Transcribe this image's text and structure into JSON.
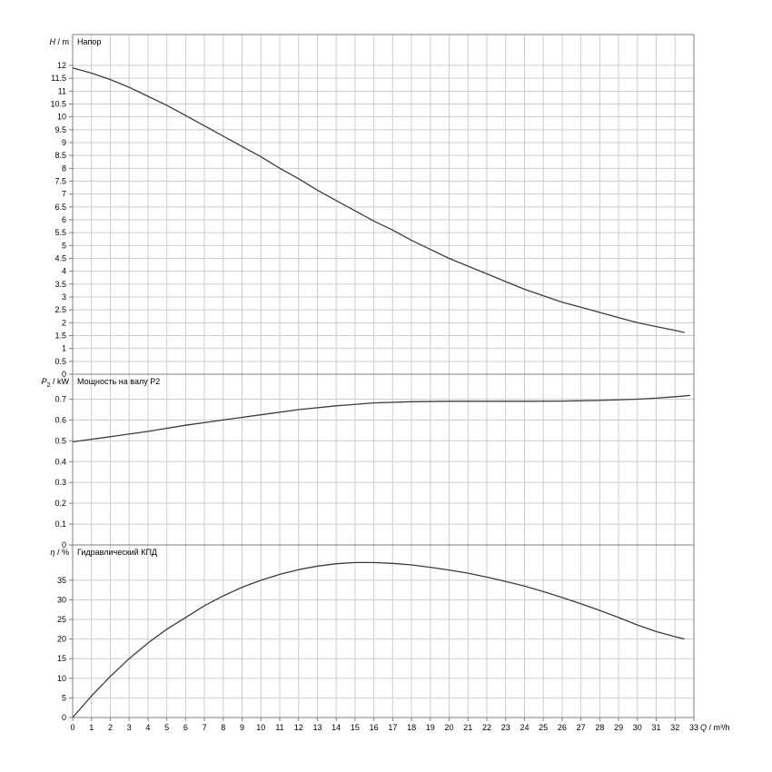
{
  "colors": {
    "background": "#ffffff",
    "grid": "#cdcdcd",
    "axis": "#7f7f7f",
    "curve": "#3d3d3d",
    "text": "#000000"
  },
  "chart_data": {
    "type": "line",
    "x_axis": {
      "min": 0,
      "max": 33,
      "tick_step": 1,
      "label": {
        "var": "Q",
        "sep": " / ",
        "unit": "m³/h"
      }
    },
    "panels": [
      {
        "name": "head",
        "title": "Напор",
        "ylabel": {
          "var": "H",
          "sep": " / ",
          "unit": "m"
        },
        "yrange": [
          0,
          13.2
        ],
        "yticks": {
          "min": 0,
          "max": 12,
          "step": 0.5
        },
        "points": [
          [
            0,
            11.9
          ],
          [
            1,
            11.7
          ],
          [
            2,
            11.45
          ],
          [
            3,
            11.15
          ],
          [
            4,
            10.8
          ],
          [
            5,
            10.45
          ],
          [
            6,
            10.05
          ],
          [
            7,
            9.65
          ],
          [
            8,
            9.25
          ],
          [
            9,
            8.85
          ],
          [
            10,
            8.45
          ],
          [
            11,
            8.0
          ],
          [
            12,
            7.6
          ],
          [
            13,
            7.15
          ],
          [
            14,
            6.75
          ],
          [
            15,
            6.35
          ],
          [
            16,
            5.95
          ],
          [
            17,
            5.6
          ],
          [
            18,
            5.2
          ],
          [
            19,
            4.85
          ],
          [
            20,
            4.5
          ],
          [
            21,
            4.2
          ],
          [
            22,
            3.9
          ],
          [
            23,
            3.6
          ],
          [
            24,
            3.3
          ],
          [
            25,
            3.05
          ],
          [
            26,
            2.8
          ],
          [
            27,
            2.6
          ],
          [
            28,
            2.4
          ],
          [
            29,
            2.2
          ],
          [
            30,
            2.0
          ],
          [
            31,
            1.85
          ],
          [
            32,
            1.7
          ],
          [
            32.5,
            1.62
          ]
        ]
      },
      {
        "name": "power",
        "title": "Мощность на валу P2",
        "ylabel": {
          "var": "P",
          "sub": "2",
          "sep": " / ",
          "unit": "kW"
        },
        "yrange": [
          0,
          0.82
        ],
        "yticks": {
          "min": 0,
          "max": 0.7,
          "step": 0.1
        },
        "points": [
          [
            0,
            0.495
          ],
          [
            2,
            0.52
          ],
          [
            4,
            0.545
          ],
          [
            6,
            0.575
          ],
          [
            8,
            0.6
          ],
          [
            10,
            0.625
          ],
          [
            12,
            0.65
          ],
          [
            14,
            0.668
          ],
          [
            16,
            0.682
          ],
          [
            18,
            0.688
          ],
          [
            20,
            0.69
          ],
          [
            22,
            0.69
          ],
          [
            24,
            0.69
          ],
          [
            26,
            0.691
          ],
          [
            28,
            0.694
          ],
          [
            30,
            0.7
          ],
          [
            31,
            0.705
          ],
          [
            32,
            0.712
          ],
          [
            32.8,
            0.718
          ]
        ]
      },
      {
        "name": "efficiency",
        "title": "Гидравлический КПД",
        "ylabel": {
          "var": "η",
          "sep": " / ",
          "unit": "%"
        },
        "yrange": [
          0,
          44
        ],
        "yticks": {
          "min": 0,
          "max": 35,
          "step": 5
        },
        "points": [
          [
            0,
            0
          ],
          [
            1,
            5.5
          ],
          [
            2,
            10.5
          ],
          [
            3,
            15
          ],
          [
            4,
            19
          ],
          [
            5,
            22.5
          ],
          [
            6,
            25.5
          ],
          [
            7,
            28.5
          ],
          [
            8,
            31
          ],
          [
            9,
            33.2
          ],
          [
            10,
            35
          ],
          [
            11,
            36.5
          ],
          [
            12,
            37.7
          ],
          [
            13,
            38.6
          ],
          [
            14,
            39.2
          ],
          [
            15,
            39.5
          ],
          [
            16,
            39.5
          ],
          [
            17,
            39.3
          ],
          [
            18,
            38.9
          ],
          [
            19,
            38.3
          ],
          [
            20,
            37.6
          ],
          [
            21,
            36.8
          ],
          [
            22,
            35.8
          ],
          [
            23,
            34.7
          ],
          [
            24,
            33.5
          ],
          [
            25,
            32.1
          ],
          [
            26,
            30.6
          ],
          [
            27,
            29.0
          ],
          [
            28,
            27.3
          ],
          [
            29,
            25.5
          ],
          [
            30,
            23.6
          ],
          [
            31,
            21.9
          ],
          [
            32,
            20.6
          ],
          [
            32.5,
            20.0
          ]
        ]
      }
    ]
  }
}
